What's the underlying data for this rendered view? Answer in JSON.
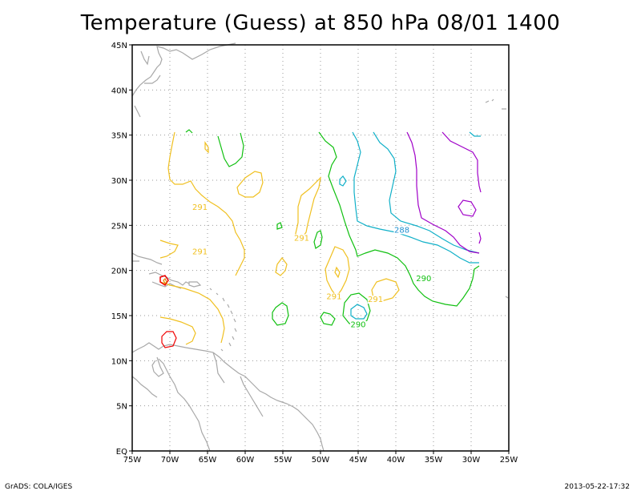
{
  "title": "Temperature (Guess) at 850 hPa 08/01 1400",
  "footer": {
    "left": "GrADS: COLA/IGES",
    "right": "2013-05-22-17:32"
  },
  "map": {
    "lon_range": [
      -75,
      -25
    ],
    "lat_range": [
      0,
      45
    ],
    "lon_labels": [
      "75W",
      "70W",
      "65W",
      "60W",
      "55W",
      "50W",
      "45W",
      "40W",
      "35W",
      "30W",
      "25W"
    ],
    "lat_labels": [
      "EQ",
      "5N",
      "10N",
      "15N",
      "20N",
      "25N",
      "30N",
      "35N",
      "40N",
      "45N"
    ],
    "grid": true
  },
  "contours": {
    "colors": {
      "291": "#f0c020",
      "290": "#10c010",
      "289": "#10a0c0",
      "288": "#2070e0",
      "287": "#a000c8",
      "292": "#e08000",
      "293": "#e03030",
      "294": "#f00000"
    },
    "labels": [
      {
        "text": "291",
        "color": "#f0c020",
        "lon": -66.0,
        "lat": 26.7
      },
      {
        "text": "291",
        "color": "#f0c020",
        "lon": -66.0,
        "lat": 21.8
      },
      {
        "text": "291",
        "color": "#f0c020",
        "lon": -52.5,
        "lat": 23.3
      },
      {
        "text": "291",
        "color": "#f0c020",
        "lon": -48.2,
        "lat": 16.8
      },
      {
        "text": "291",
        "color": "#f0c020",
        "lon": -42.7,
        "lat": 16.5
      },
      {
        "text": "290",
        "color": "#10c010",
        "lon": -45.0,
        "lat": 13.7
      },
      {
        "text": "290",
        "color": "#10c010",
        "lon": -36.3,
        "lat": 18.8
      },
      {
        "text": "288",
        "color": "#2090d0",
        "lon": -39.2,
        "lat": 24.2
      }
    ]
  }
}
